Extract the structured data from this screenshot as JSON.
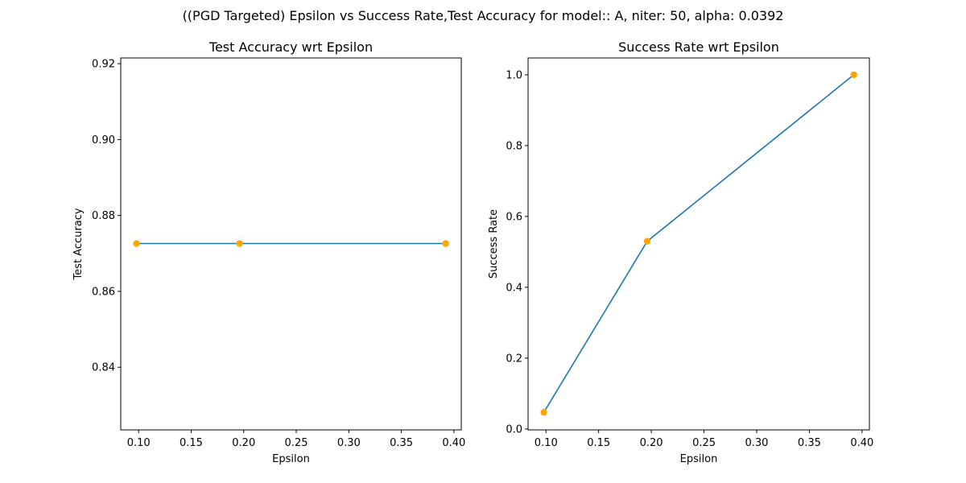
{
  "suptitle": "((PGD Targeted) Epsilon vs Success Rate,Test Accuracy for model:: A, niter: 50, alpha:  0.0392",
  "colors": {
    "line": "#1f77b4",
    "marker": "#ffa500",
    "axis": "#000000",
    "background": "#ffffff"
  },
  "chart_data": [
    {
      "type": "line",
      "title": "Test Accuracy wrt Epsilon",
      "xlabel": "Epsilon",
      "ylabel": "Test Accuracy",
      "xlim": [
        0.083,
        0.407
      ],
      "ylim": [
        0.8235,
        0.9215
      ],
      "xticks": [
        0.1,
        0.15,
        0.2,
        0.25,
        0.3,
        0.35,
        0.4
      ],
      "xtick_labels": [
        "0.10",
        "0.15",
        "0.20",
        "0.25",
        "0.30",
        "0.35",
        "0.40"
      ],
      "yticks": [
        0.84,
        0.86,
        0.88,
        0.9,
        0.92
      ],
      "ytick_labels": [
        "0.84",
        "0.86",
        "0.88",
        "0.90",
        "0.92"
      ],
      "grid": false,
      "series": [
        {
          "x": [
            0.098,
            0.1961,
            0.3922
          ],
          "y": [
            0.8726,
            0.8726,
            0.8726
          ]
        }
      ]
    },
    {
      "type": "line",
      "title": "Success Rate wrt Epsilon",
      "xlabel": "Epsilon",
      "ylabel": "Success Rate",
      "xlim": [
        0.083,
        0.407
      ],
      "ylim": [
        -0.0025,
        1.0475
      ],
      "xticks": [
        0.1,
        0.15,
        0.2,
        0.25,
        0.3,
        0.35,
        0.4
      ],
      "xtick_labels": [
        "0.10",
        "0.15",
        "0.20",
        "0.25",
        "0.30",
        "0.35",
        "0.40"
      ],
      "yticks": [
        0.0,
        0.2,
        0.4,
        0.6,
        0.8,
        1.0
      ],
      "ytick_labels": [
        "0.0",
        "0.2",
        "0.4",
        "0.6",
        "0.8",
        "1.0"
      ],
      "grid": false,
      "series": [
        {
          "x": [
            0.098,
            0.1961,
            0.3922
          ],
          "y": [
            0.047,
            0.53,
            1.0
          ]
        }
      ]
    }
  ]
}
